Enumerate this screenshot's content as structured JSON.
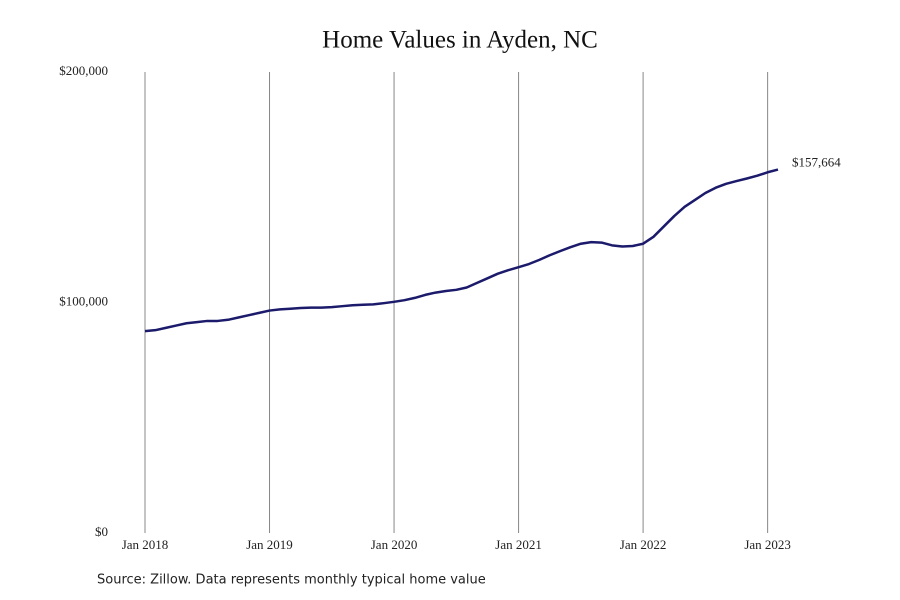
{
  "chart_data": {
    "type": "line",
    "title": "Home Values in Ayden, NC",
    "source": "Source: Zillow. Data represents monthly typical home value",
    "x": [
      "2018-01",
      "2018-02",
      "2018-03",
      "2018-04",
      "2018-05",
      "2018-06",
      "2018-07",
      "2018-08",
      "2018-09",
      "2018-10",
      "2018-11",
      "2018-12",
      "2019-01",
      "2019-02",
      "2019-03",
      "2019-04",
      "2019-05",
      "2019-06",
      "2019-07",
      "2019-08",
      "2019-09",
      "2019-10",
      "2019-11",
      "2019-12",
      "2020-01",
      "2020-02",
      "2020-03",
      "2020-04",
      "2020-05",
      "2020-06",
      "2020-07",
      "2020-08",
      "2020-09",
      "2020-10",
      "2020-11",
      "2020-12",
      "2021-01",
      "2021-02",
      "2021-03",
      "2021-04",
      "2021-05",
      "2021-06",
      "2021-07",
      "2021-08",
      "2021-09",
      "2021-10",
      "2021-11",
      "2021-12",
      "2022-01",
      "2022-02",
      "2022-03",
      "2022-04",
      "2022-05",
      "2022-06",
      "2022-07",
      "2022-08",
      "2022-09",
      "2022-10",
      "2022-11",
      "2022-12",
      "2023-01",
      "2023-02"
    ],
    "series": [
      {
        "name": "Typical home value",
        "color": "#1b1a6b",
        "values": [
          87600,
          88000,
          89000,
          90000,
          91000,
          91500,
          92000,
          92000,
          92500,
          93500,
          94500,
          95500,
          96500,
          97000,
          97300,
          97600,
          97800,
          97800,
          98000,
          98400,
          98800,
          99000,
          99200,
          99700,
          100300,
          101000,
          102000,
          103300,
          104300,
          105000,
          105500,
          106500,
          108500,
          110500,
          112500,
          114000,
          115300,
          116700,
          118500,
          120500,
          122300,
          124000,
          125500,
          126200,
          126000,
          124800,
          124300,
          124500,
          125500,
          128500,
          133000,
          137500,
          141500,
          144500,
          147500,
          149800,
          151500,
          152700,
          153800,
          155000,
          156500,
          157664
        ],
        "value_labels": [
          null,
          null,
          null,
          null,
          null,
          null,
          null,
          null,
          null,
          null,
          null,
          null,
          null,
          null,
          null,
          null,
          null,
          null,
          null,
          null,
          null,
          null,
          null,
          null,
          null,
          null,
          null,
          null,
          null,
          null,
          null,
          null,
          null,
          null,
          null,
          null,
          null,
          null,
          null,
          null,
          null,
          null,
          null,
          null,
          null,
          null,
          null,
          null,
          null,
          null,
          null,
          null,
          null,
          null,
          null,
          null,
          null,
          null,
          null,
          null,
          null,
          "$157,664"
        ]
      }
    ],
    "xlim": [
      "2018-01",
      "2023-02"
    ],
    "xticks": [
      {
        "value": "2018-01",
        "label": "Jan 2018"
      },
      {
        "value": "2019-01",
        "label": "Jan 2019"
      },
      {
        "value": "2020-01",
        "label": "Jan 2020"
      },
      {
        "value": "2021-01",
        "label": "Jan 2021"
      },
      {
        "value": "2022-01",
        "label": "Jan 2022"
      },
      {
        "value": "2023-01",
        "label": "Jan 2023"
      }
    ],
    "ylim": [
      0,
      200000
    ],
    "yticks": [
      {
        "value": 0,
        "label": "$0"
      },
      {
        "value": 100000,
        "label": "$100,000"
      },
      {
        "value": 200000,
        "label": "$200,000"
      }
    ],
    "grid": "x"
  }
}
